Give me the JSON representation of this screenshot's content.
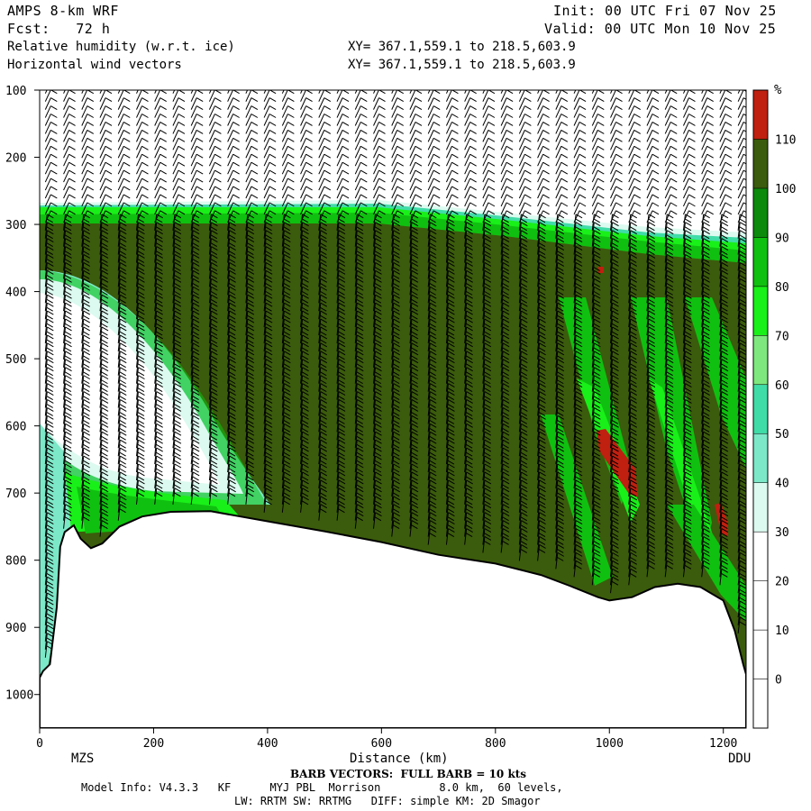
{
  "header": {
    "model": "AMPS 8-km WRF",
    "forecast": "Fcst:   72 h",
    "field1": "Relative humidity (w.r.t. ice)",
    "field2": "Horizontal wind vectors",
    "init": "Init: 00 UTC Fri 07 Nov 25",
    "valid": "Valid: 00 UTC Mon 10 Nov 25",
    "xy1": "XY= 367.1,559.1 to 218.5,603.9",
    "xy2": "XY= 367.1,559.1 to 218.5,603.9"
  },
  "footer": {
    "barb": "BARB VECTORS:  FULL BARB = 10 kts",
    "model_info": "Model Info: V4.3.3   KF      MYJ PBL  Morrison         8.0 km,  60 levels,",
    "physics": "LW: RRTM SW: RRTMG   DIFF: simple KM: 2D Smagor",
    "start_label": "MZS",
    "end_label": "DDU"
  },
  "chart_data": {
    "type": "heatmap",
    "title": "Relative humidity (w.r.t. ice)",
    "xlabel": "Distance (km)",
    "ylabel": "",
    "xlim": [
      0,
      1240
    ],
    "ylim": [
      1050,
      100
    ],
    "x_ticks": [
      0,
      200,
      400,
      600,
      800,
      1000,
      1200
    ],
    "y_ticks": [
      100,
      200,
      300,
      400,
      500,
      600,
      700,
      800,
      900,
      1000
    ],
    "colorbar": {
      "unit": "%",
      "levels": [
        0,
        10,
        20,
        30,
        40,
        50,
        60,
        70,
        80,
        90,
        100,
        110
      ],
      "colors": [
        "#ffffff",
        "#ffffff",
        "#ffffff",
        "#ffffff",
        "#dcfaf0",
        "#7de8c8",
        "#40dca8",
        "#7ee87e",
        "#19f019",
        "#10c010",
        "#0c8a0c",
        "#3b5c0c",
        "#c02010"
      ]
    },
    "terrain_pressure_hpa": [
      [
        0,
        975
      ],
      [
        6,
        965
      ],
      [
        18,
        955
      ],
      [
        30,
        870
      ],
      [
        36,
        780
      ],
      [
        44,
        758
      ],
      [
        60,
        748
      ],
      [
        72,
        768
      ],
      [
        90,
        782
      ],
      [
        110,
        775
      ],
      [
        140,
        750
      ],
      [
        180,
        735
      ],
      [
        230,
        728
      ],
      [
        300,
        727
      ],
      [
        400,
        742
      ],
      [
        500,
        757
      ],
      [
        600,
        773
      ],
      [
        700,
        792
      ],
      [
        800,
        805
      ],
      [
        880,
        822
      ],
      [
        930,
        838
      ],
      [
        980,
        855
      ],
      [
        1000,
        860
      ],
      [
        1040,
        855
      ],
      [
        1080,
        840
      ],
      [
        1120,
        835
      ],
      [
        1160,
        840
      ],
      [
        1200,
        860
      ],
      [
        1220,
        905
      ],
      [
        1235,
        955
      ],
      [
        1240,
        970
      ]
    ]
  }
}
